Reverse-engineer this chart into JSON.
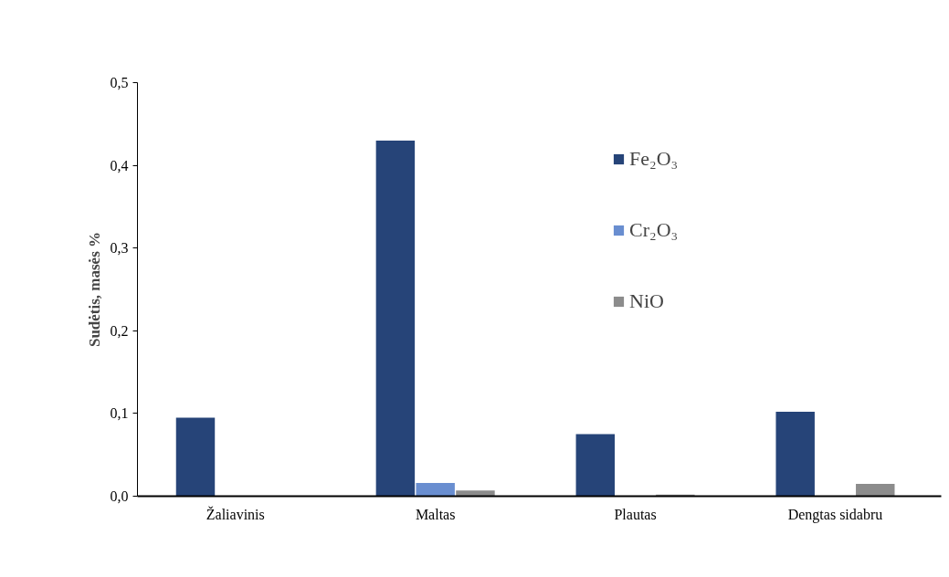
{
  "chart_data": {
    "type": "bar",
    "ylabel": "Sudėtis, masės %",
    "categories": [
      "Žaliavinis",
      "Maltas",
      "Plautas",
      "Dengtas sidabru"
    ],
    "series": [
      {
        "name": "Fe₂O₃",
        "color": "#264478",
        "values": [
          0.095,
          0.43,
          0.075,
          0.102
        ]
      },
      {
        "name": "Cr₂O₃",
        "color": "#698ed0",
        "values": [
          null,
          0.016,
          null,
          null
        ]
      },
      {
        "name": "NiO",
        "color": "#8c8c8c",
        "values": [
          null,
          0.007,
          0.002,
          0.015
        ]
      }
    ],
    "ylim": [
      0,
      0.5
    ],
    "yticks": [
      {
        "value": 0,
        "label": "0,0"
      },
      {
        "value": 0.1,
        "label": "0,1"
      },
      {
        "value": 0.2,
        "label": "0,2"
      },
      {
        "value": 0.3,
        "label": "0,3"
      },
      {
        "value": 0.4,
        "label": "0,4"
      },
      {
        "value": 0.5,
        "label": "0,5"
      }
    ],
    "grid": false,
    "legend": "top right"
  }
}
